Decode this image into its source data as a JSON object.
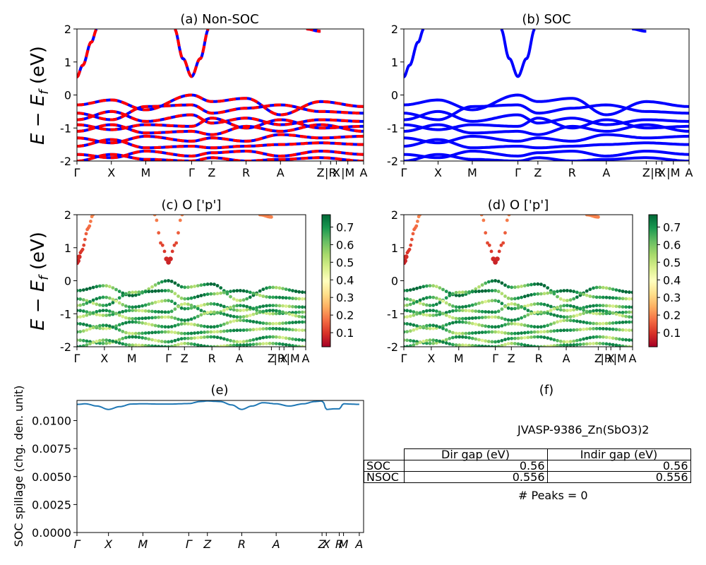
{
  "chart_data": [
    {
      "id": "a",
      "type": "line",
      "title": "(a) Non-SOC",
      "ylabel": "E − E_f (eV)",
      "ylim": [
        -2,
        2
      ],
      "yticks": [
        -2,
        -1,
        0,
        1,
        2
      ],
      "x_labels": [
        "Γ",
        "X",
        "M",
        "Γ",
        "Z",
        "R",
        "A",
        "Z",
        "|R",
        "X",
        "|M",
        "A"
      ],
      "x_positions": [
        0,
        0.12,
        0.24,
        0.4,
        0.47,
        0.59,
        0.71,
        0.85,
        0.885,
        0.905,
        0.945,
        1.0
      ],
      "series_colors": [
        "#0000ff",
        "#ff0000"
      ],
      "conduction": [
        {
          "x": [
            0,
            0.02,
            0.05,
            0.07
          ],
          "y": [
            0.55,
            0.9,
            1.6,
            2.0
          ]
        },
        {
          "x": [
            0.34,
            0.37,
            0.4,
            0.43,
            0.46
          ],
          "y": [
            2.0,
            1.1,
            0.56,
            1.1,
            2.0
          ]
        },
        {
          "x": [
            0.8,
            0.85
          ],
          "y": [
            2.0,
            1.93
          ]
        }
      ],
      "valence_bands": [
        {
          "x": [
            0,
            0.12,
            0.24,
            0.4,
            0.47,
            0.59,
            0.71,
            0.85,
            1.0
          ],
          "y": [
            -0.3,
            -0.15,
            -0.45,
            0.0,
            -0.2,
            -0.1,
            -0.6,
            -0.2,
            -0.35
          ]
        },
        {
          "x": [
            0,
            0.12,
            0.24,
            0.4,
            0.47,
            0.59,
            0.71,
            0.85,
            1.0
          ],
          "y": [
            -0.55,
            -0.75,
            -0.35,
            -0.3,
            -0.55,
            -0.4,
            -0.3,
            -0.5,
            -0.55
          ]
        },
        {
          "x": [
            0,
            0.12,
            0.24,
            0.4,
            0.47,
            0.59,
            0.71,
            0.85,
            1.0
          ],
          "y": [
            -0.75,
            -0.5,
            -0.8,
            -0.6,
            -0.85,
            -0.7,
            -0.9,
            -0.75,
            -0.8
          ]
        },
        {
          "x": [
            0,
            0.12,
            0.24,
            0.4,
            0.47,
            0.59,
            0.71,
            0.85,
            1.0
          ],
          "y": [
            -0.9,
            -1.05,
            -0.9,
            -0.95,
            -0.7,
            -1.0,
            -0.75,
            -1.0,
            -0.95
          ]
        },
        {
          "x": [
            0,
            0.12,
            0.24,
            0.4,
            0.47,
            0.59,
            0.71,
            0.85,
            1.0
          ],
          "y": [
            -1.1,
            -0.9,
            -1.15,
            -1.1,
            -1.2,
            -0.95,
            -1.1,
            -0.9,
            -1.1
          ]
        },
        {
          "x": [
            0,
            0.12,
            0.24,
            0.4,
            0.47,
            0.59,
            0.71,
            0.85,
            1.0
          ],
          "y": [
            -1.3,
            -1.45,
            -1.25,
            -1.4,
            -1.3,
            -1.4,
            -1.2,
            -1.3,
            -1.25
          ]
        },
        {
          "x": [
            0,
            0.12,
            0.24,
            0.4,
            0.47,
            0.59,
            0.71,
            0.85,
            1.0
          ],
          "y": [
            -1.55,
            -1.35,
            -1.6,
            -1.55,
            -1.6,
            -1.55,
            -1.5,
            -1.45,
            -1.5
          ]
        },
        {
          "x": [
            0,
            0.12,
            0.24,
            0.4,
            0.47,
            0.59,
            0.71,
            0.85,
            1.0
          ],
          "y": [
            -1.8,
            -1.9,
            -1.7,
            -1.85,
            -1.75,
            -1.7,
            -1.85,
            -1.7,
            -1.8
          ]
        },
        {
          "x": [
            0,
            0.12,
            0.24,
            0.4,
            0.47,
            0.59,
            0.71,
            0.85,
            1.0
          ],
          "y": [
            -2.0,
            -1.8,
            -1.95,
            -2.0,
            -1.9,
            -2.0,
            -1.95,
            -1.9,
            -2.0
          ]
        }
      ]
    },
    {
      "id": "b",
      "type": "line",
      "title": "(b) SOC",
      "ylim": [
        -2,
        2
      ],
      "yticks": [
        -2,
        -1,
        0,
        1,
        2
      ],
      "x_labels": [
        "Γ",
        "X",
        "M",
        "Γ",
        "Z",
        "R",
        "A",
        "Z",
        "|R",
        "X",
        "|M",
        "A"
      ],
      "x_positions": [
        0,
        0.12,
        0.24,
        0.4,
        0.47,
        0.59,
        0.71,
        0.85,
        0.885,
        0.905,
        0.945,
        1.0
      ],
      "series_colors": [
        "#0000ff"
      ],
      "conduction": [
        {
          "x": [
            0,
            0.02,
            0.05,
            0.07
          ],
          "y": [
            0.55,
            0.9,
            1.6,
            2.0
          ]
        },
        {
          "x": [
            0.34,
            0.37,
            0.4,
            0.43,
            0.46
          ],
          "y": [
            2.0,
            1.1,
            0.56,
            1.1,
            2.0
          ]
        },
        {
          "x": [
            0.8,
            0.85
          ],
          "y": [
            2.0,
            1.93
          ]
        }
      ],
      "valence_bands": [
        {
          "x": [
            0,
            0.12,
            0.24,
            0.4,
            0.47,
            0.59,
            0.71,
            0.85,
            1.0
          ],
          "y": [
            -0.3,
            -0.15,
            -0.45,
            0.0,
            -0.2,
            -0.1,
            -0.6,
            -0.2,
            -0.35
          ]
        },
        {
          "x": [
            0,
            0.12,
            0.24,
            0.4,
            0.47,
            0.59,
            0.71,
            0.85,
            1.0
          ],
          "y": [
            -0.55,
            -0.75,
            -0.35,
            -0.3,
            -0.55,
            -0.4,
            -0.3,
            -0.5,
            -0.55
          ]
        },
        {
          "x": [
            0,
            0.12,
            0.24,
            0.4,
            0.47,
            0.59,
            0.71,
            0.85,
            1.0
          ],
          "y": [
            -0.75,
            -0.5,
            -0.8,
            -0.6,
            -0.85,
            -0.7,
            -0.9,
            -0.75,
            -0.8
          ]
        },
        {
          "x": [
            0,
            0.12,
            0.24,
            0.4,
            0.47,
            0.59,
            0.71,
            0.85,
            1.0
          ],
          "y": [
            -0.9,
            -1.05,
            -0.9,
            -0.95,
            -0.7,
            -1.0,
            -0.75,
            -1.0,
            -0.95
          ]
        },
        {
          "x": [
            0,
            0.12,
            0.24,
            0.4,
            0.47,
            0.59,
            0.71,
            0.85,
            1.0
          ],
          "y": [
            -1.1,
            -0.9,
            -1.15,
            -1.1,
            -1.2,
            -0.95,
            -1.1,
            -0.9,
            -1.1
          ]
        },
        {
          "x": [
            0,
            0.12,
            0.24,
            0.4,
            0.47,
            0.59,
            0.71,
            0.85,
            1.0
          ],
          "y": [
            -1.3,
            -1.45,
            -1.25,
            -1.4,
            -1.3,
            -1.4,
            -1.2,
            -1.3,
            -1.25
          ]
        },
        {
          "x": [
            0,
            0.12,
            0.24,
            0.4,
            0.47,
            0.59,
            0.71,
            0.85,
            1.0
          ],
          "y": [
            -1.55,
            -1.35,
            -1.6,
            -1.55,
            -1.6,
            -1.55,
            -1.5,
            -1.45,
            -1.5
          ]
        },
        {
          "x": [
            0,
            0.12,
            0.24,
            0.4,
            0.47,
            0.59,
            0.71,
            0.85,
            1.0
          ],
          "y": [
            -1.8,
            -1.9,
            -1.7,
            -1.85,
            -1.75,
            -1.7,
            -1.85,
            -1.7,
            -1.8
          ]
        },
        {
          "x": [
            0,
            0.12,
            0.24,
            0.4,
            0.47,
            0.59,
            0.71,
            0.85,
            1.0
          ],
          "y": [
            -2.0,
            -1.8,
            -1.95,
            -2.0,
            -1.9,
            -2.0,
            -1.95,
            -1.9,
            -2.0
          ]
        }
      ]
    },
    {
      "id": "c",
      "type": "scatter",
      "title": "(c)  O ['p']",
      "ylabel": "E − E_f (eV)",
      "ylim": [
        -2,
        2
      ],
      "yticks": [
        -2,
        -1,
        0,
        1,
        2
      ],
      "x_labels": [
        "Γ",
        "X",
        "M",
        "Γ",
        "Z",
        "R",
        "A",
        "Z",
        "|R",
        "X",
        "|M",
        "A"
      ],
      "x_positions": [
        0,
        0.12,
        0.24,
        0.4,
        0.47,
        0.59,
        0.71,
        0.85,
        0.885,
        0.905,
        0.945,
        1.0
      ],
      "colormap": "RdYlGn",
      "colorbar_ticks": [
        0.1,
        0.2,
        0.3,
        0.4,
        0.5,
        0.6,
        0.7
      ],
      "colorbar_range": [
        0.02,
        0.77
      ]
    },
    {
      "id": "d",
      "type": "scatter",
      "title": "(d) O ['p']",
      "ylim": [
        -2,
        2
      ],
      "yticks": [
        -2,
        -1,
        0,
        1,
        2
      ],
      "x_labels": [
        "Γ",
        "X",
        "M",
        "Γ",
        "Z",
        "R",
        "A",
        "Z",
        "|R",
        "X",
        "|M",
        "A"
      ],
      "x_positions": [
        0,
        0.12,
        0.24,
        0.4,
        0.47,
        0.59,
        0.71,
        0.85,
        0.885,
        0.905,
        0.945,
        1.0
      ],
      "colormap": "RdYlGn",
      "colorbar_ticks": [
        0.1,
        0.2,
        0.3,
        0.4,
        0.5,
        0.6,
        0.7
      ],
      "colorbar_range": [
        0.02,
        0.77
      ]
    },
    {
      "id": "e",
      "type": "line",
      "title": "(e)",
      "ylabel": "SOC spillage (chg. den. unit)",
      "ylim": [
        0,
        0.0118
      ],
      "yticks": [
        0.0,
        0.0025,
        0.005,
        0.0075,
        0.01
      ],
      "ytick_labels": [
        "0.0000",
        "0.0025",
        "0.0050",
        "0.0075",
        "0.0100"
      ],
      "x_labels": [
        "Γ",
        "X",
        "M",
        "Γ",
        "Z",
        "R",
        "A",
        "Z",
        "X",
        "R",
        "M",
        "A"
      ],
      "x_positions": [
        0,
        0.11,
        0.23,
        0.39,
        0.455,
        0.575,
        0.695,
        0.855,
        0.87,
        0.915,
        0.93,
        0.985
      ],
      "series": [
        {
          "name": "spillage",
          "color": "#1f77b4",
          "x": [
            0,
            0.03,
            0.07,
            0.11,
            0.15,
            0.19,
            0.23,
            0.28,
            0.33,
            0.39,
            0.43,
            0.455,
            0.5,
            0.54,
            0.575,
            0.61,
            0.65,
            0.695,
            0.74,
            0.79,
            0.83,
            0.855,
            0.86,
            0.87,
            0.9,
            0.915,
            0.93,
            0.95,
            0.985
          ],
          "y": [
            0.01145,
            0.0115,
            0.0113,
            0.011,
            0.01125,
            0.01148,
            0.0115,
            0.01148,
            0.01148,
            0.01152,
            0.0117,
            0.01175,
            0.0117,
            0.0114,
            0.011,
            0.0113,
            0.0116,
            0.0115,
            0.0113,
            0.0115,
            0.0117,
            0.01175,
            0.0116,
            0.011,
            0.01105,
            0.01105,
            0.0115,
            0.01148,
            0.01145
          ]
        }
      ]
    }
  ],
  "panel_f": {
    "title": "(f)",
    "material": "JVASP-9386_Zn(SbO3)2",
    "table": {
      "headers": [
        "Dir gap (eV)",
        "Indir gap (eV)"
      ],
      "rows": [
        {
          "label": "SOC",
          "dir": "0.56",
          "indir": "0.56"
        },
        {
          "label": "NSOC",
          "dir": "0.556",
          "indir": "0.556"
        }
      ]
    },
    "peaks": "# Peaks = 0"
  }
}
